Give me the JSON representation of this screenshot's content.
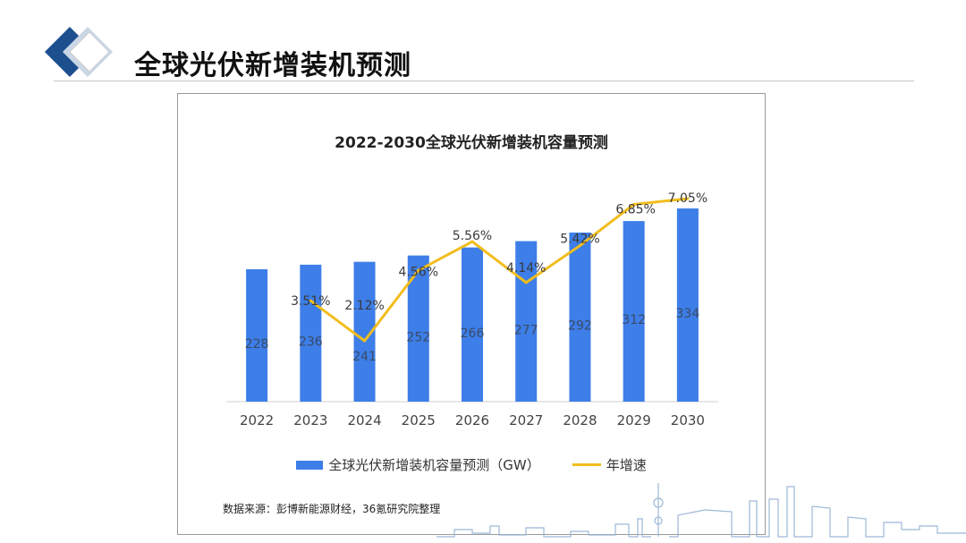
{
  "slide": {
    "title": "全球光伏新增装机预测"
  },
  "chart_data": {
    "type": "bar",
    "title": "2022-2030全球光伏新增装机容量预测",
    "categories": [
      "2022",
      "2023",
      "2024",
      "2025",
      "2026",
      "2027",
      "2028",
      "2029",
      "2030"
    ],
    "series": [
      {
        "name": "全球光伏新增装机容量预测（GW）",
        "type": "bar",
        "color": "#3d7ee8",
        "values": [
          228,
          236,
          241,
          252,
          266,
          277,
          292,
          312,
          334
        ],
        "labels": [
          "228",
          "236",
          "241",
          "252",
          "266",
          "277",
          "292",
          "312",
          "334"
        ]
      },
      {
        "name": "年增速",
        "type": "line",
        "color": "#f2bd1d",
        "values": [
          null,
          3.51,
          2.12,
          4.56,
          5.56,
          4.14,
          5.42,
          6.85,
          7.05
        ],
        "labels": [
          "",
          "3.51%",
          "2.12%",
          "4.56%",
          "5.56%",
          "4.14%",
          "5.42%",
          "6.85%",
          "7.05%"
        ]
      }
    ],
    "legend_position": "bottom",
    "grid": false,
    "source": "数据来源：彭博新能源财经，36氪研究院整理"
  }
}
